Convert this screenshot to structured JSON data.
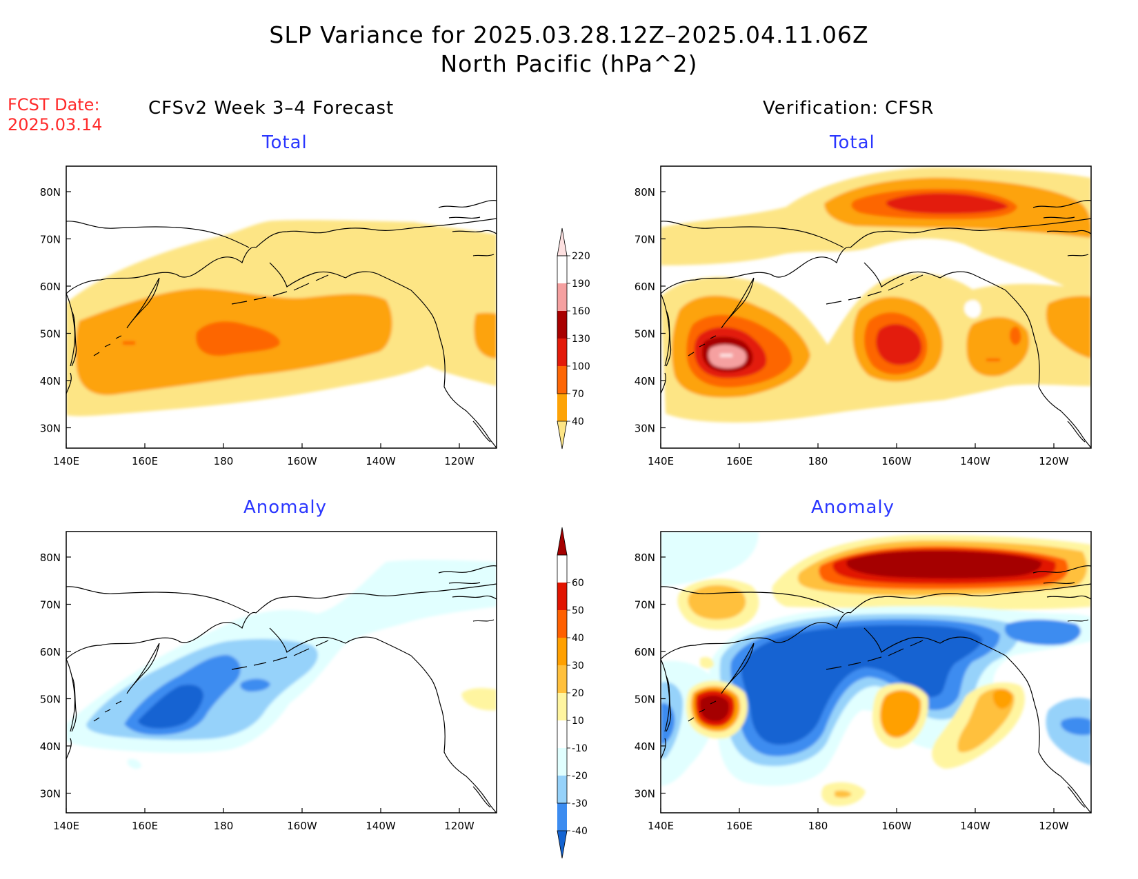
{
  "header": {
    "title_line1": "SLP Variance for 2025.03.28.12Z–2025.04.11.06Z",
    "title_line2": "North Pacific (hPa^2)",
    "fcst_label_line1": "FCST Date:",
    "fcst_label_line2": "2025.03.14",
    "left_column_title": "CFSv2 Week 3–4 Forecast",
    "right_column_title": "Verification: CFSR"
  },
  "panels": {
    "forecast_total": {
      "subtitle": "Total"
    },
    "verification_total": {
      "subtitle": "Total"
    },
    "forecast_anomaly": {
      "subtitle": "Anomaly"
    },
    "verification_anomaly": {
      "subtitle": "Anomaly"
    }
  },
  "axes": {
    "lon_ticks": [
      "140E",
      "160E",
      "180",
      "160W",
      "140W",
      "120W"
    ],
    "lat_ticks": [
      "80N",
      "70N",
      "60N",
      "50N",
      "40N",
      "30N"
    ]
  },
  "colorbars": {
    "total": {
      "levels": [
        "40",
        "70",
        "100",
        "130",
        "160",
        "190",
        "220"
      ],
      "colors": [
        "#fde585",
        "#fda307",
        "#fd6605",
        "#e31a0a",
        "#a80000",
        "#f5a0a0",
        "#fde0e0"
      ]
    },
    "anomaly": {
      "levels": [
        "-40",
        "-30",
        "-20",
        "-10",
        "10",
        "20",
        "30",
        "40",
        "50",
        "60"
      ],
      "colors": [
        "#1464d2",
        "#3c8cf0",
        "#96d2fa",
        "#e1ffff",
        "#ffffff",
        "#fff5a0",
        "#ffc03c",
        "#ffa000",
        "#ff6000",
        "#e11400",
        "#a50000"
      ]
    }
  },
  "palette": {
    "total_yellow": "#fde585",
    "total_orange": "#fda307",
    "total_darkorange": "#fd6605",
    "total_red": "#e31a0a",
    "total_darkred": "#a80000",
    "total_pink": "#f5a0a0",
    "total_lightpink": "#fde0e0",
    "anom_blue1": "#1464d2",
    "anom_blue2": "#3c8cf0",
    "anom_blue3": "#96d2fa",
    "anom_blue4": "#e1ffff",
    "anom_yellow": "#fff5a0",
    "anom_orange1": "#ffc03c",
    "anom_orange2": "#ffa000",
    "anom_red1": "#ff6000",
    "anom_red2": "#e11400",
    "anom_darkred": "#a50000"
  }
}
